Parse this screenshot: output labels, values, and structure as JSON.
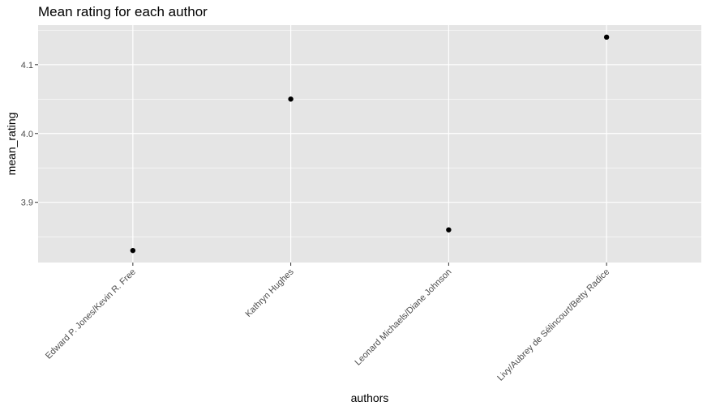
{
  "chart_data": {
    "type": "scatter",
    "title": "Mean rating for each author",
    "xlabel": "authors",
    "ylabel": "mean_rating",
    "categories": [
      "Edward P. Jones/Kevin R. Free",
      "Kathryn  Hughes",
      "Leonard Michaels/Diane Johnson",
      "Livy/Aubrey de Sélincourt/Betty Radice"
    ],
    "values": [
      3.83,
      4.05,
      3.86,
      4.14
    ],
    "yticks": [
      3.9,
      4.0,
      4.1
    ],
    "ytick_labels": [
      "3.9",
      "4.0",
      "4.1"
    ],
    "ylim": [
      3.8125,
      4.1575
    ],
    "grid": true,
    "colors": {
      "panel": "#e5e5e5",
      "gridline": "#ffffff",
      "point": "#000000"
    }
  }
}
